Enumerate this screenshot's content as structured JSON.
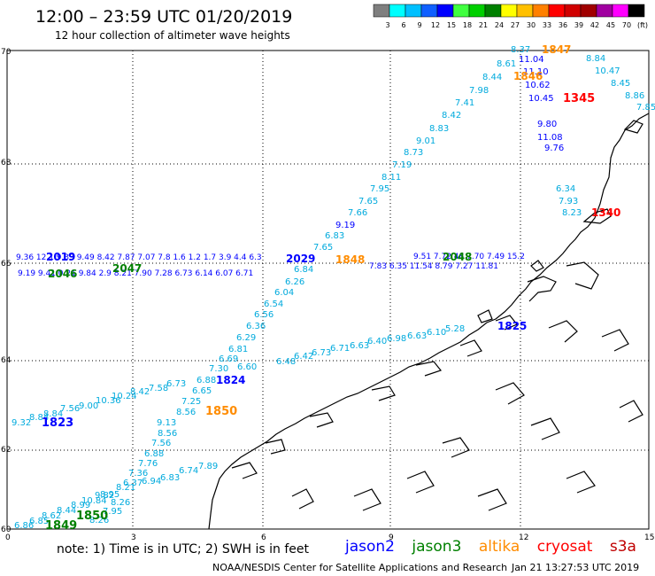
{
  "header": {
    "title": "12:00 – 23:59 UTC 01/20/2019",
    "subtitle": "12 hour collection of altimeter wave heights"
  },
  "colorbar": {
    "labels": [
      "3",
      "6",
      "9",
      "12",
      "15",
      "18",
      "21",
      "24",
      "27",
      "30",
      "33",
      "36",
      "39",
      "42",
      "45",
      "70",
      "(ft)"
    ],
    "colors": [
      "#7f7f7f",
      "#00ffff",
      "#00c0ff",
      "#1060ff",
      "#0000ff",
      "#40ff40",
      "#00d000",
      "#008000",
      "#ffff00",
      "#ffc000",
      "#ff8000",
      "#ff0000",
      "#d00000",
      "#a00000",
      "#a000a0",
      "#ff00ff",
      "#000000"
    ]
  },
  "axes": {
    "x_ticks": [
      "0",
      "3",
      "6",
      "9",
      "12",
      "15"
    ],
    "y_ticks": [
      "60",
      "62",
      "64",
      "66",
      "68",
      "70"
    ]
  },
  "satellites": {
    "jason2": {
      "name": "jason2",
      "color": "#0000ff"
    },
    "jason3": {
      "name": "jason3",
      "color": "#008000"
    },
    "altika": {
      "name": "altika",
      "color": "#ff8c00"
    },
    "cryosat": {
      "name": "cryosat",
      "color": "#ff0000"
    },
    "s3a": {
      "name": "s3a",
      "color": "#c00000"
    },
    "cyan": "#00aadd"
  },
  "track_values": {
    "top_right": [
      "8.37",
      "8.61",
      "8.44",
      "7.98",
      "7.41",
      "8.42",
      "8.83",
      "9.01",
      "8.73",
      "7.19",
      "8.11",
      "7.95",
      "7.65",
      "7.66"
    ],
    "top_right_blue": [
      "11.04",
      "11.10",
      "10.62",
      "10.45",
      "9.80",
      "11.08",
      "9.76",
      "9.19"
    ],
    "far_right": [
      "8.84",
      "10.47",
      "8.45",
      "8.86",
      "7.85"
    ],
    "far_right_lower": [
      "6.34",
      "7.93",
      "8.23"
    ],
    "mid_diag": [
      "6.83",
      "7.65",
      "6.84",
      "6.26",
      "6.04",
      "6.54",
      "6.56",
      "6.36",
      "6.29",
      "6.81",
      "6.69",
      "6.60",
      "6.48",
      "6.42",
      "6.73",
      "6.71",
      "6.63",
      "6.40",
      "6.98",
      "6.63",
      "6.10",
      "5.28"
    ],
    "lower_diag": [
      "7.30",
      "6.88",
      "6.65",
      "7.25",
      "8.56",
      "9.13",
      "8.56",
      "7.56",
      "6.88",
      "7.76",
      "7.36",
      "6.37",
      "6.94",
      "6.83",
      "6.74",
      "7.89"
    ],
    "left_lower": [
      "9.32",
      "8.84",
      "8.84",
      "7.56",
      "9.00",
      "10.36",
      "10.24",
      "8.42",
      "7.58",
      "6.73"
    ],
    "bottom_left": [
      "6.86",
      "6.85",
      "8.62",
      "8.44",
      "8.99",
      "10.84",
      "9.82",
      "8.95",
      "8.26",
      "7.95",
      "8.26",
      "8.21"
    ],
    "row66_left": "9.36 12.1 9.39 9.49 8.42 7.87 7.07 7.8 1.6 1.2 1.7 3.9 4.4 6.3",
    "row66_right": "9.51 7.72 48 7.70 7.49 15.2",
    "row66_left2": "9.19 9.41 0.21 9.84 2.9 8.21 7.90 7.28 6.73 6.14 6.07 6.71",
    "row66_right2": "7.83 6.35 11.54 8.79 7.27 11.81"
  },
  "time_labels": {
    "t1847": "1847",
    "t1846": "1846",
    "t1345": "1345",
    "t1340": "1340",
    "t2019": "2019",
    "t2046": "2046",
    "t2047": "2047",
    "t2029": "2029",
    "t1848": "1848",
    "t2048": "2048",
    "t1825": "1825",
    "t1824": "1824",
    "t1850": "1850",
    "t1823": "1823",
    "t1849": "1849",
    "t1850b": "1850"
  },
  "footer": {
    "note": "note:  1) Time is in UTC;  2) SWH is in feet",
    "credit": "NOAA/NESDIS Center for Satellite Applications and Research",
    "timestamp": "Jan 21 13:27:53 UTC 2019"
  }
}
